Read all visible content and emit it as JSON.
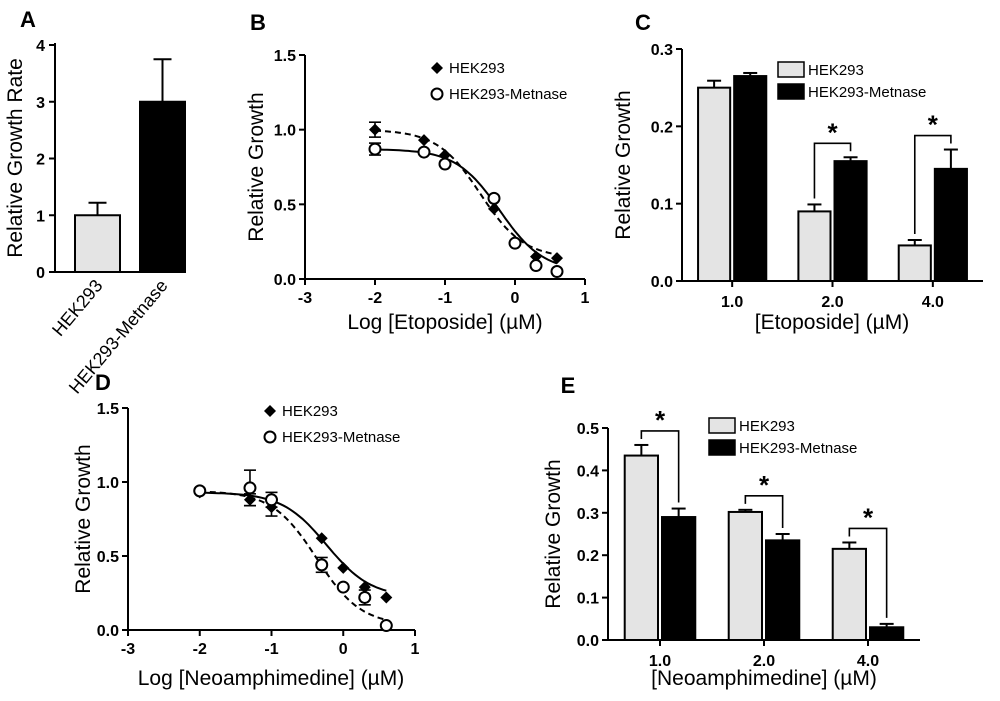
{
  "colors": {
    "light_bar": "#e4e4e4",
    "dark_bar": "#000000",
    "ink": "#000000"
  },
  "chart_data": [
    {
      "panel": "A",
      "type": "bar",
      "categories": [
        "HEK293",
        "HEK293-Metnase"
      ],
      "values": [
        1.0,
        3.0
      ],
      "errors": [
        0.22,
        0.75
      ],
      "ylabel": "Relative Growth Rate",
      "xlabel": "",
      "ylim": [
        0,
        4
      ],
      "yticks": [
        "0",
        "1",
        "2",
        "3",
        "4"
      ]
    },
    {
      "panel": "B",
      "type": "line",
      "xlabel": "Log [Etoposide] (µM)",
      "ylabel": "Relative Growth",
      "xlim": [
        -3,
        1
      ],
      "ylim": [
        0,
        1.5
      ],
      "xticks": [
        "-3",
        "-2",
        "-1",
        "0",
        "1"
      ],
      "yticks": [
        "0.0",
        "0.5",
        "1.0",
        "1.5"
      ],
      "legend": [
        "HEK293",
        "HEK293-Metnase"
      ],
      "series": [
        {
          "name": "HEK293",
          "marker": "diamond",
          "line": "dashed",
          "x": [
            -2.0,
            -1.3,
            -1.0,
            -0.3,
            0.0,
            0.3,
            0.6
          ],
          "y": [
            1.0,
            0.93,
            0.83,
            0.47,
            0.25,
            0.15,
            0.14
          ],
          "err": [
            0.05,
            0,
            0,
            0,
            0,
            0,
            0
          ]
        },
        {
          "name": "HEK293-Metnase",
          "marker": "circle",
          "line": "solid",
          "x": [
            -2.0,
            -1.3,
            -1.0,
            -0.3,
            0.0,
            0.3,
            0.6
          ],
          "y": [
            0.87,
            0.85,
            0.77,
            0.54,
            0.24,
            0.09,
            0.05
          ],
          "err": [
            0.04,
            0,
            0,
            0,
            0,
            0,
            0
          ]
        }
      ]
    },
    {
      "panel": "C",
      "type": "bar",
      "categories": [
        "1.0",
        "2.0",
        "4.0"
      ],
      "xlabel": "[Etoposide] (µM)",
      "ylabel": "Relative Growth",
      "ylim": [
        0,
        0.3
      ],
      "yticks": [
        "0.0",
        "0.1",
        "0.2",
        "0.3"
      ],
      "legend": [
        "HEK293",
        "HEK293-Metnase"
      ],
      "series": [
        {
          "name": "HEK293",
          "values": [
            0.25,
            0.09,
            0.046
          ],
          "errors": [
            0.009,
            0.009,
            0.007
          ]
        },
        {
          "name": "HEK293-Metnase",
          "values": [
            0.265,
            0.155,
            0.145
          ],
          "errors": [
            0.004,
            0.005,
            0.025
          ]
        }
      ],
      "significance": [
        "",
        "*",
        "*"
      ]
    },
    {
      "panel": "D",
      "type": "line",
      "xlabel": "Log [Neoamphimedine] (µM)",
      "ylabel": "Relative Growth",
      "xlim": [
        -3,
        1
      ],
      "ylim": [
        0,
        1.5
      ],
      "xticks": [
        "-3",
        "-2",
        "-1",
        "0",
        "1"
      ],
      "yticks": [
        "0.0",
        "0.5",
        "1.0",
        "1.5"
      ],
      "legend": [
        "HEK293",
        "HEK293-Metnase"
      ],
      "series": [
        {
          "name": "HEK293",
          "marker": "diamond",
          "line": "solid",
          "x": [
            -2.0,
            -1.3,
            -1.0,
            -0.3,
            0.0,
            0.3,
            0.6
          ],
          "y": [
            0.93,
            0.88,
            0.83,
            0.62,
            0.42,
            0.29,
            0.22
          ],
          "err": [
            0,
            0.04,
            0.06,
            0,
            0,
            0,
            0
          ]
        },
        {
          "name": "HEK293-Metnase",
          "marker": "circle",
          "line": "dashed",
          "x": [
            -2.0,
            -1.3,
            -1.0,
            -0.3,
            0.0,
            0.3,
            0.6
          ],
          "y": [
            0.94,
            0.96,
            0.88,
            0.44,
            0.29,
            0.22,
            0.03
          ],
          "err": [
            0,
            0.12,
            0.05,
            0.05,
            0,
            0.05,
            0
          ]
        }
      ]
    },
    {
      "panel": "E",
      "type": "bar",
      "categories": [
        "1.0",
        "2.0",
        "4.0"
      ],
      "xlabel": "[Neoamphimedine] (µM)",
      "ylabel": "Relative Growth",
      "ylim": [
        0,
        0.5
      ],
      "yticks": [
        "0.0",
        "0.1",
        "0.2",
        "0.3",
        "0.4",
        "0.5"
      ],
      "legend": [
        "HEK293",
        "HEK293-Metnase"
      ],
      "series": [
        {
          "name": "HEK293",
          "values": [
            0.435,
            0.302,
            0.215
          ],
          "errors": [
            0.025,
            0.005,
            0.015
          ]
        },
        {
          "name": "HEK293-Metnase",
          "values": [
            0.29,
            0.235,
            0.03
          ],
          "errors": [
            0.02,
            0.015,
            0.008
          ]
        }
      ],
      "significance": [
        "*",
        "*",
        "*"
      ]
    }
  ]
}
